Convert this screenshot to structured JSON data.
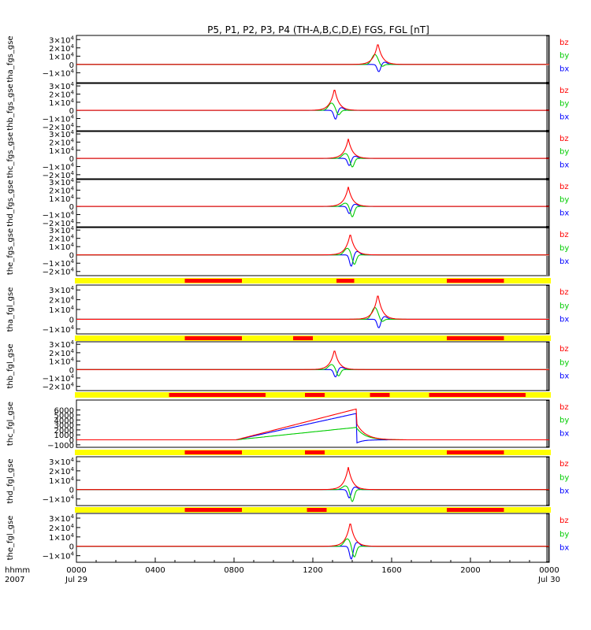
{
  "chart_data": {
    "type": "line",
    "title": "P5, P1, P2, P3, P4 (TH-A,B,C,D,E) FGS, FGL [nT]",
    "colors": {
      "bx": "#0000ff",
      "by": "#00cc00",
      "bz": "#ff0000",
      "bar_on": "#ff0000",
      "bar_off": "#ffff00"
    },
    "x_axis": {
      "corner_label": "hhmm",
      "year_label": "2007",
      "range_hours": [
        0,
        24
      ],
      "ticks": [
        {
          "hours": 0,
          "label": "0000",
          "sub": "Jul 29"
        },
        {
          "hours": 4,
          "label": "0400",
          "sub": ""
        },
        {
          "hours": 8,
          "label": "0800",
          "sub": ""
        },
        {
          "hours": 12,
          "label": "1200",
          "sub": ""
        },
        {
          "hours": 16,
          "label": "1600",
          "sub": ""
        },
        {
          "hours": 20,
          "label": "2000",
          "sub": ""
        },
        {
          "hours": 24,
          "label": "0000",
          "sub": "Jul 30"
        }
      ]
    },
    "panels": [
      {
        "ylabel": "tha_fgs_gse",
        "ylim": [
          -22000,
          35000
        ],
        "ticks": [
          {
            "v": 30000,
            "mant": "3×10",
            "exp": "4"
          },
          {
            "v": 20000,
            "mant": "2×10",
            "exp": "4"
          },
          {
            "v": 10000,
            "mant": "1×10",
            "exp": "4"
          },
          {
            "v": 0,
            "mant": "0",
            "exp": ""
          },
          {
            "v": -10000,
            "mant": "−1×10",
            "exp": "4"
          }
        ],
        "legend": [
          "bz",
          "by",
          "bx"
        ],
        "event": {
          "center_hour": 15.3,
          "bz_peak": 26000,
          "by_peak": 12000,
          "by_min": -3000,
          "bx_min": -9000
        }
      },
      {
        "ylabel": "thb_fgs_gse",
        "ylim": [
          -25000,
          33000
        ],
        "ticks": [
          {
            "v": 30000,
            "mant": "3×10",
            "exp": "4"
          },
          {
            "v": 20000,
            "mant": "2×10",
            "exp": "4"
          },
          {
            "v": 10000,
            "mant": "1×10",
            "exp": "4"
          },
          {
            "v": 0,
            "mant": "0",
            "exp": ""
          },
          {
            "v": -10000,
            "mant": "−1×10",
            "exp": "4"
          },
          {
            "v": -20000,
            "mant": "−2×10",
            "exp": "4"
          }
        ],
        "legend": [
          "bz",
          "by",
          "bx"
        ],
        "event": {
          "center_hour": 13.1,
          "bz_peak": 27000,
          "by_peak": 9000,
          "by_min": -6000,
          "bx_min": -11000
        }
      },
      {
        "ylabel": "thc_fgs_gse",
        "ylim": [
          -25000,
          33000
        ],
        "ticks": [
          {
            "v": 30000,
            "mant": "3×10",
            "exp": "4"
          },
          {
            "v": 20000,
            "mant": "2×10",
            "exp": "4"
          },
          {
            "v": 10000,
            "mant": "1×10",
            "exp": "4"
          },
          {
            "v": 0,
            "mant": "0",
            "exp": ""
          },
          {
            "v": -10000,
            "mant": "−1×10",
            "exp": "4"
          },
          {
            "v": -20000,
            "mant": "−2×10",
            "exp": "4"
          }
        ],
        "legend": [
          "bz",
          "by",
          "bx"
        ],
        "event": {
          "center_hour": 13.8,
          "bz_peak": 24000,
          "by_peak": 6000,
          "by_min": -11000,
          "bx_min": -9000
        }
      },
      {
        "ylabel": "thd_fgs_gse",
        "ylim": [
          -25000,
          33000
        ],
        "ticks": [
          {
            "v": 30000,
            "mant": "3×10",
            "exp": "4"
          },
          {
            "v": 20000,
            "mant": "2×10",
            "exp": "4"
          },
          {
            "v": 10000,
            "mant": "1×10",
            "exp": "4"
          },
          {
            "v": 0,
            "mant": "0",
            "exp": ""
          },
          {
            "v": -10000,
            "mant": "−1×10",
            "exp": "4"
          },
          {
            "v": -20000,
            "mant": "−2×10",
            "exp": "4"
          }
        ],
        "legend": [
          "bz",
          "by",
          "bx"
        ],
        "event": {
          "center_hour": 13.8,
          "bz_peak": 24000,
          "by_peak": 4000,
          "by_min": -13000,
          "bx_min": -9000
        }
      },
      {
        "ylabel": "the_fgs_gse",
        "ylim": [
          -25000,
          33000
        ],
        "ticks": [
          {
            "v": 30000,
            "mant": "3×10",
            "exp": "4"
          },
          {
            "v": 20000,
            "mant": "2×10",
            "exp": "4"
          },
          {
            "v": 10000,
            "mant": "1×10",
            "exp": "4"
          },
          {
            "v": 0,
            "mant": "0",
            "exp": ""
          },
          {
            "v": -10000,
            "mant": "−1×10",
            "exp": "4"
          },
          {
            "v": -20000,
            "mant": "−2×10",
            "exp": "4"
          }
        ],
        "legend": [
          "bz",
          "by",
          "bx"
        ],
        "event": {
          "center_hour": 13.9,
          "bz_peak": 26000,
          "by_peak": 8000,
          "by_min": -12000,
          "bx_min": -14000
        }
      },
      {
        "ylabel": "tha_fgl_gse",
        "ylim": [
          -15000,
          35000
        ],
        "ticks": [
          {
            "v": 30000,
            "mant": "3×10",
            "exp": "4"
          },
          {
            "v": 20000,
            "mant": "2×10",
            "exp": "4"
          },
          {
            "v": 10000,
            "mant": "1×10",
            "exp": "4"
          },
          {
            "v": 0,
            "mant": "0",
            "exp": ""
          },
          {
            "v": -10000,
            "mant": "−1×10",
            "exp": "4"
          }
        ],
        "legend": [
          "bz",
          "by",
          "bx"
        ],
        "event": {
          "center_hour": 15.3,
          "bz_peak": 26000,
          "by_peak": 12000,
          "by_min": -3000,
          "bx_min": -9000
        }
      },
      {
        "ylabel": "thb_fgl_gse",
        "ylim": [
          -25000,
          33000
        ],
        "ticks": [
          {
            "v": 30000,
            "mant": "3×10",
            "exp": "4"
          },
          {
            "v": 20000,
            "mant": "2×10",
            "exp": "4"
          },
          {
            "v": 10000,
            "mant": "1×10",
            "exp": "4"
          },
          {
            "v": 0,
            "mant": "0",
            "exp": ""
          },
          {
            "v": -10000,
            "mant": "−1×10",
            "exp": "4"
          },
          {
            "v": -20000,
            "mant": "−2×10",
            "exp": "4"
          }
        ],
        "legend": [
          "bz",
          "by",
          "bx"
        ],
        "event": {
          "center_hour": 13.1,
          "bz_peak": 24000,
          "by_peak": 6000,
          "by_min": -8000,
          "bx_min": -9000
        }
      },
      {
        "ylabel": "thc_fgl_gse",
        "ylim": [
          -1500,
          8000
        ],
        "ticks": [
          {
            "v": 6000,
            "mant": "6000",
            "exp": ""
          },
          {
            "v": 5000,
            "mant": "5000",
            "exp": ""
          },
          {
            "v": 4000,
            "mant": "4000",
            "exp": ""
          },
          {
            "v": 3000,
            "mant": "3000",
            "exp": ""
          },
          {
            "v": 2000,
            "mant": "2000",
            "exp": ""
          },
          {
            "v": 1000,
            "mant": "1000",
            "exp": ""
          },
          {
            "v": 0,
            "mant": "0",
            "exp": ""
          },
          {
            "v": -1000,
            "mant": "−1000",
            "exp": ""
          }
        ],
        "legend": [
          "bz",
          "by",
          "bx"
        ],
        "ramp": {
          "start_hour": 8.1,
          "end_hour": 14.2,
          "bz_end": 6200,
          "bx_end": 5300,
          "by_end": 2500,
          "decay_end_hour": 16.5
        }
      },
      {
        "ylabel": "thd_fgl_gse",
        "ylim": [
          -17000,
          35000
        ],
        "ticks": [
          {
            "v": 30000,
            "mant": "3×10",
            "exp": "4"
          },
          {
            "v": 20000,
            "mant": "2×10",
            "exp": "4"
          },
          {
            "v": 10000,
            "mant": "1×10",
            "exp": "4"
          },
          {
            "v": 0,
            "mant": "0",
            "exp": ""
          },
          {
            "v": -10000,
            "mant": "−1×10",
            "exp": "4"
          }
        ],
        "legend": [
          "bz",
          "by",
          "bx"
        ],
        "event": {
          "center_hour": 13.8,
          "bz_peak": 24000,
          "by_peak": 4000,
          "by_min": -13000,
          "bx_min": -9000
        }
      },
      {
        "ylabel": "the_fgl_gse",
        "ylim": [
          -17000,
          35000
        ],
        "ticks": [
          {
            "v": 30000,
            "mant": "3×10",
            "exp": "4"
          },
          {
            "v": 20000,
            "mant": "2×10",
            "exp": "4"
          },
          {
            "v": 10000,
            "mant": "1×10",
            "exp": "4"
          },
          {
            "v": 0,
            "mant": "0",
            "exp": ""
          },
          {
            "v": -10000,
            "mant": "−1×10",
            "exp": "4"
          }
        ],
        "legend": [
          "bz",
          "by",
          "bx"
        ],
        "event": {
          "center_hour": 13.9,
          "bz_peak": 26000,
          "by_peak": 8000,
          "by_min": -12000,
          "bx_min": -14000
        }
      }
    ],
    "availability_bars": [
      {
        "above_panel": 5,
        "red_hours": [
          [
            5.5,
            8.4
          ],
          [
            13.2,
            14.1
          ],
          [
            18.8,
            21.7
          ]
        ]
      },
      {
        "above_panel": 6,
        "red_hours": [
          [
            5.5,
            8.4
          ],
          [
            11.0,
            12.0
          ],
          [
            18.8,
            21.7
          ]
        ]
      },
      {
        "above_panel": 7,
        "red_hours": [
          [
            4.7,
            9.6
          ],
          [
            11.6,
            12.6
          ],
          [
            14.9,
            15.9
          ],
          [
            17.9,
            22.8
          ]
        ]
      },
      {
        "above_panel": 8,
        "red_hours": [
          [
            5.5,
            8.4
          ],
          [
            11.6,
            12.6
          ],
          [
            18.8,
            21.7
          ]
        ]
      },
      {
        "above_panel": 9,
        "red_hours": [
          [
            5.5,
            8.4
          ],
          [
            11.7,
            12.7
          ],
          [
            18.8,
            21.7
          ]
        ]
      }
    ]
  }
}
